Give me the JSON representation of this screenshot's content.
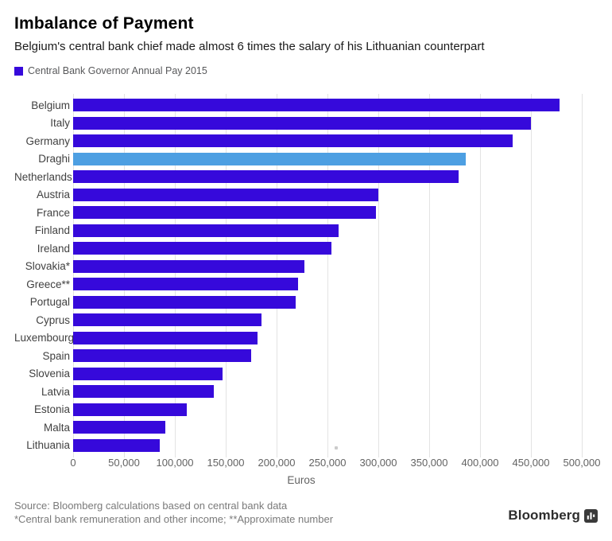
{
  "header": {
    "title": "Imbalance of Payment",
    "subtitle": "Belgium's central bank chief made almost 6 times the salary of his Lithuanian counterpart"
  },
  "legend": {
    "label": "Central Bank Governor Annual Pay 2015",
    "swatch_color": "#3609DB"
  },
  "chart_data": {
    "type": "bar",
    "orientation": "horizontal",
    "title": "Imbalance of Payment",
    "categories": [
      "Belgium",
      "Italy",
      "Germany",
      "Draghi",
      "Netherlands",
      "Austria",
      "France",
      "Finland",
      "Ireland",
      "Slovakia*",
      "Greece**",
      "Portugal",
      "Cyprus",
      "Luxembourg",
      "Spain",
      "Slovenia",
      "Latvia",
      "Estonia",
      "Malta",
      "Lithuania"
    ],
    "values": [
      478000,
      450000,
      432000,
      386000,
      379000,
      300000,
      298000,
      261000,
      254000,
      227000,
      221000,
      219000,
      185000,
      181000,
      175000,
      147000,
      138000,
      112000,
      91000,
      85000
    ],
    "series_name": "Central Bank Governor Annual Pay 2015",
    "bar_color": "#3609DB",
    "highlight_index": 3,
    "highlight_color": "#4D9FE2",
    "xlabel": "Euros",
    "xlim": [
      0,
      500000
    ],
    "x_ticks": [
      0,
      50000,
      100000,
      150000,
      200000,
      250000,
      300000,
      350000,
      400000,
      450000,
      500000
    ],
    "x_tick_labels": [
      "0",
      "50,000",
      "100,000",
      "150,000",
      "200,000",
      "250,000",
      "300,000",
      "350,000",
      "400,000",
      "450,000",
      "500,000"
    ],
    "grid": true,
    "gridline_color": "#e3e3e3",
    "legend_position": "top-left"
  },
  "footer": {
    "source_line": "Source: Bloomberg calculations based on central bank data",
    "notes_line": "*Central bank remuneration and other income; **Approximate number",
    "brand": "Bloomberg",
    "brand_mark_icon": "bloomberg-mark"
  },
  "colors": {
    "background": "#ffffff",
    "title_text": "#000000",
    "axis_text": "#636363",
    "category_text": "#414141",
    "footer_text": "#7a7a7a"
  }
}
